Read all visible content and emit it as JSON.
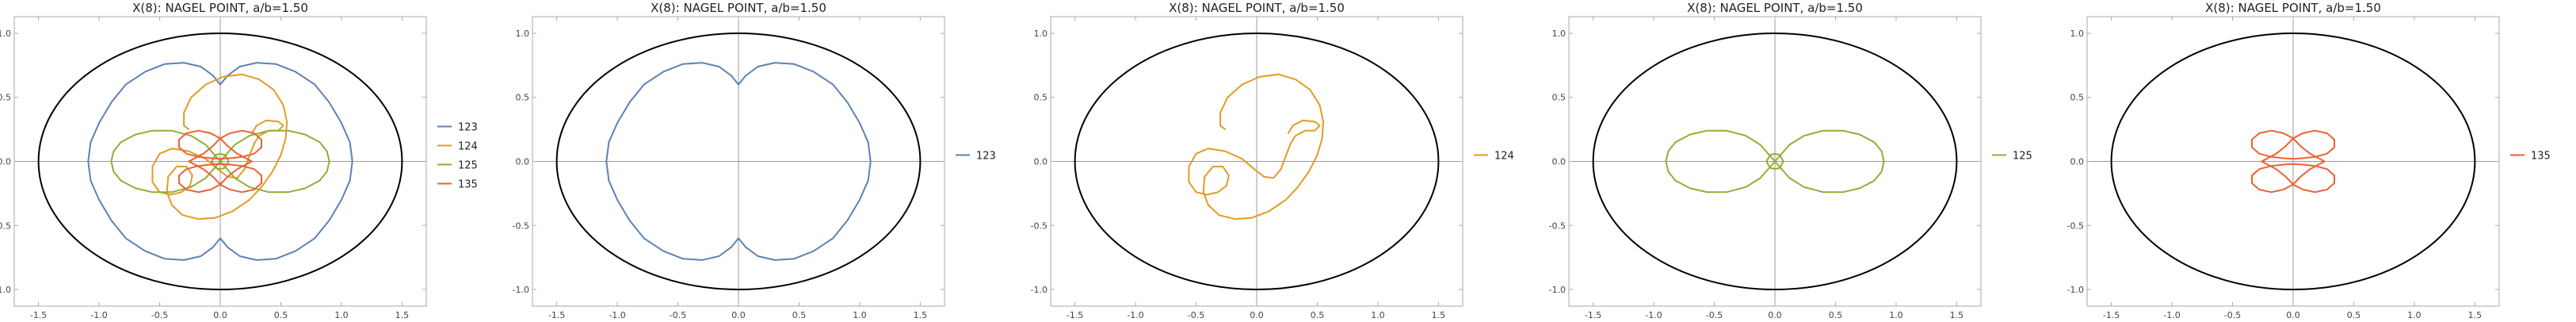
{
  "colors": {
    "123": "#5E81B5",
    "124": "#E19C24",
    "125": "#8FB032",
    "135": "#EB6235",
    "ellipse": "#000000",
    "axes": "#999999",
    "frame": "#aaaaaa",
    "tick_text": "#444444",
    "title_text": "#222222"
  },
  "chart_data": [
    {
      "type": "line",
      "title": "X(8): NAGEL POINT, a/b=1.50",
      "xlim": [
        -1.7,
        1.7
      ],
      "ylim": [
        -1.13,
        1.13
      ],
      "xticks": [
        -1.5,
        -1.0,
        -0.5,
        0.0,
        0.5,
        1.0,
        1.5
      ],
      "xtick_labels": [
        "-1.5",
        "-1.0",
        "-0.5",
        "0.0",
        "0.5",
        "1.0",
        "1.5"
      ],
      "yticks": [
        -1.0,
        -0.5,
        0.0,
        0.5,
        1.0
      ],
      "ytick_labels": [
        "-1.0",
        "-0.5",
        "0.0",
        "0.5",
        "1.0"
      ],
      "ellipse": {
        "a": 1.5,
        "b": 1.0
      },
      "legend": [
        "123",
        "124",
        "125",
        "135"
      ],
      "legend_position": "right",
      "series": [
        "123",
        "124",
        "125",
        "135"
      ]
    },
    {
      "type": "line",
      "title": "X(8): NAGEL POINT, a/b=1.50",
      "xlim": [
        -1.7,
        1.7
      ],
      "ylim": [
        -1.13,
        1.13
      ],
      "xticks": [
        -1.5,
        -1.0,
        -0.5,
        0.0,
        0.5,
        1.0,
        1.5
      ],
      "xtick_labels": [
        "-1.5",
        "-1.0",
        "-0.5",
        "0.0",
        "0.5",
        "1.0",
        "1.5"
      ],
      "yticks": [
        -1.0,
        -0.5,
        0.0,
        0.5,
        1.0
      ],
      "ytick_labels": [
        "-1.0",
        "-0.5",
        "0.0",
        "0.5",
        "1.0"
      ],
      "ellipse": {
        "a": 1.5,
        "b": 1.0
      },
      "legend": [
        "123"
      ],
      "legend_position": "right",
      "series": [
        "123"
      ]
    },
    {
      "type": "line",
      "title": "X(8): NAGEL POINT, a/b=1.50",
      "xlim": [
        -1.7,
        1.7
      ],
      "ylim": [
        -1.13,
        1.13
      ],
      "xticks": [
        -1.5,
        -1.0,
        -0.5,
        0.0,
        0.5,
        1.0,
        1.5
      ],
      "xtick_labels": [
        "-1.5",
        "-1.0",
        "-0.5",
        "0.0",
        "0.5",
        "1.0",
        "1.5"
      ],
      "yticks": [
        -1.0,
        -0.5,
        0.0,
        0.5,
        1.0
      ],
      "ytick_labels": [
        "-1.0",
        "-0.5",
        "0.0",
        "0.5",
        "1.0"
      ],
      "ellipse": {
        "a": 1.5,
        "b": 1.0
      },
      "legend": [
        "124"
      ],
      "legend_position": "right",
      "series": [
        "124"
      ]
    },
    {
      "type": "line",
      "title": "X(8): NAGEL POINT, a/b=1.50",
      "xlim": [
        -1.7,
        1.7
      ],
      "ylim": [
        -1.13,
        1.13
      ],
      "xticks": [
        -1.5,
        -1.0,
        -0.5,
        0.0,
        0.5,
        1.0,
        1.5
      ],
      "xtick_labels": [
        "-1.5",
        "-1.0",
        "-0.5",
        "0.0",
        "0.5",
        "1.0",
        "1.5"
      ],
      "yticks": [
        -1.0,
        -0.5,
        0.0,
        0.5,
        1.0
      ],
      "ytick_labels": [
        "-1.0",
        "-0.5",
        "0.0",
        "0.5",
        "1.0"
      ],
      "ellipse": {
        "a": 1.5,
        "b": 1.0
      },
      "legend": [
        "125"
      ],
      "legend_position": "right",
      "series": [
        "125"
      ]
    },
    {
      "type": "line",
      "title": "X(8): NAGEL POINT, a/b=1.50",
      "xlim": [
        -1.7,
        1.7
      ],
      "ylim": [
        -1.13,
        1.13
      ],
      "xticks": [
        -1.5,
        -1.0,
        -0.5,
        0.0,
        0.5,
        1.0,
        1.5
      ],
      "xtick_labels": [
        "-1.5",
        "-1.0",
        "-0.5",
        "0.0",
        "0.5",
        "1.0",
        "1.5"
      ],
      "yticks": [
        -1.0,
        -0.5,
        0.0,
        0.5,
        1.0
      ],
      "ytick_labels": [
        "-1.0",
        "-0.5",
        "0.0",
        "0.5",
        "1.0"
      ],
      "ellipse": {
        "a": 1.5,
        "b": 1.0
      },
      "legend": [
        "135"
      ],
      "legend_position": "right",
      "series": [
        "135"
      ]
    }
  ],
  "curves": {
    "123": [
      [
        0.0,
        0.6
      ],
      [
        0.06,
        0.67
      ],
      [
        0.16,
        0.74
      ],
      [
        0.3,
        0.77
      ],
      [
        0.46,
        0.76
      ],
      [
        0.62,
        0.7
      ],
      [
        0.78,
        0.6
      ],
      [
        0.9,
        0.46
      ],
      [
        1.0,
        0.3
      ],
      [
        1.07,
        0.15
      ],
      [
        1.09,
        0.0
      ],
      [
        1.07,
        -0.15
      ],
      [
        1.0,
        -0.3
      ],
      [
        0.9,
        -0.46
      ],
      [
        0.78,
        -0.6
      ],
      [
        0.62,
        -0.7
      ],
      [
        0.46,
        -0.76
      ],
      [
        0.3,
        -0.77
      ],
      [
        0.16,
        -0.74
      ],
      [
        0.06,
        -0.67
      ],
      [
        0.0,
        -0.6
      ],
      [
        -0.06,
        -0.67
      ],
      [
        -0.16,
        -0.74
      ],
      [
        -0.3,
        -0.77
      ],
      [
        -0.46,
        -0.76
      ],
      [
        -0.62,
        -0.7
      ],
      [
        -0.78,
        -0.6
      ],
      [
        -0.9,
        -0.46
      ],
      [
        -1.0,
        -0.3
      ],
      [
        -1.07,
        -0.15
      ],
      [
        -1.09,
        0.0
      ],
      [
        -1.07,
        0.15
      ],
      [
        -1.0,
        0.3
      ],
      [
        -0.9,
        0.46
      ],
      [
        -0.78,
        0.6
      ],
      [
        -0.62,
        0.7
      ],
      [
        -0.46,
        0.76
      ],
      [
        -0.3,
        0.77
      ],
      [
        -0.16,
        0.74
      ],
      [
        -0.06,
        0.67
      ],
      [
        0.0,
        0.6
      ]
    ],
    "124": [
      [
        -0.26,
        0.25
      ],
      [
        -0.3,
        0.28
      ],
      [
        -0.3,
        0.38
      ],
      [
        -0.24,
        0.5
      ],
      [
        -0.12,
        0.6
      ],
      [
        0.02,
        0.66
      ],
      [
        0.18,
        0.68
      ],
      [
        0.32,
        0.64
      ],
      [
        0.44,
        0.56
      ],
      [
        0.52,
        0.44
      ],
      [
        0.55,
        0.31
      ],
      [
        0.54,
        0.18
      ],
      [
        0.5,
        0.05
      ],
      [
        0.43,
        -0.08
      ],
      [
        0.34,
        -0.2
      ],
      [
        0.24,
        -0.3
      ],
      [
        0.1,
        -0.39
      ],
      [
        -0.04,
        -0.44
      ],
      [
        -0.18,
        -0.45
      ],
      [
        -0.31,
        -0.42
      ],
      [
        -0.4,
        -0.34
      ],
      [
        -0.44,
        -0.24
      ],
      [
        -0.43,
        -0.12
      ],
      [
        -0.36,
        -0.04
      ],
      [
        -0.28,
        -0.04
      ],
      [
        -0.23,
        -0.11
      ],
      [
        -0.25,
        -0.19
      ],
      [
        -0.32,
        -0.24
      ],
      [
        -0.41,
        -0.26
      ],
      [
        -0.5,
        -0.24
      ],
      [
        -0.56,
        -0.16
      ],
      [
        -0.56,
        -0.04
      ],
      [
        -0.5,
        0.06
      ],
      [
        -0.4,
        0.1
      ],
      [
        -0.26,
        0.08
      ],
      [
        -0.12,
        0.02
      ],
      [
        -0.02,
        -0.06
      ],
      [
        0.06,
        -0.12
      ],
      [
        0.14,
        -0.13
      ],
      [
        0.2,
        -0.06
      ],
      [
        0.24,
        0.04
      ],
      [
        0.28,
        0.14
      ],
      [
        0.32,
        0.2
      ],
      [
        0.4,
        0.24
      ],
      [
        0.48,
        0.24
      ],
      [
        0.52,
        0.28
      ],
      [
        0.48,
        0.31
      ],
      [
        0.38,
        0.32
      ],
      [
        0.3,
        0.28
      ],
      [
        0.26,
        0.22
      ]
    ],
    "125": [
      [
        0.0,
        0.0
      ],
      [
        0.12,
        0.13
      ],
      [
        0.24,
        0.2
      ],
      [
        0.4,
        0.24
      ],
      [
        0.56,
        0.24
      ],
      [
        0.7,
        0.21
      ],
      [
        0.82,
        0.15
      ],
      [
        0.88,
        0.08
      ],
      [
        0.9,
        0.0
      ],
      [
        0.88,
        -0.08
      ],
      [
        0.82,
        -0.15
      ],
      [
        0.7,
        -0.21
      ],
      [
        0.56,
        -0.24
      ],
      [
        0.4,
        -0.24
      ],
      [
        0.24,
        -0.2
      ],
      [
        0.12,
        -0.13
      ],
      [
        0.0,
        0.0
      ],
      [
        -0.12,
        0.13
      ],
      [
        -0.24,
        0.2
      ],
      [
        -0.4,
        0.24
      ],
      [
        -0.56,
        0.24
      ],
      [
        -0.7,
        0.21
      ],
      [
        -0.82,
        0.15
      ],
      [
        -0.88,
        0.08
      ],
      [
        -0.9,
        0.0
      ],
      [
        -0.88,
        -0.08
      ],
      [
        -0.82,
        -0.15
      ],
      [
        -0.7,
        -0.21
      ],
      [
        -0.56,
        -0.24
      ],
      [
        -0.4,
        -0.24
      ],
      [
        -0.24,
        -0.2
      ],
      [
        -0.12,
        -0.13
      ],
      [
        0.0,
        0.0
      ]
    ],
    "125b": [
      [
        0.0,
        0.06
      ],
      [
        0.04,
        0.05
      ],
      [
        0.07,
        0.0
      ],
      [
        0.04,
        -0.05
      ],
      [
        0.0,
        -0.06
      ],
      [
        -0.04,
        -0.05
      ],
      [
        -0.07,
        0.0
      ],
      [
        -0.04,
        0.05
      ],
      [
        0.0,
        0.06
      ]
    ],
    "135": [
      [
        0.0,
        0.18
      ],
      [
        0.08,
        0.22
      ],
      [
        0.18,
        0.24
      ],
      [
        0.28,
        0.22
      ],
      [
        0.34,
        0.17
      ],
      [
        0.34,
        0.11
      ],
      [
        0.28,
        0.06
      ],
      [
        0.18,
        0.035
      ],
      [
        0.08,
        0.025
      ],
      [
        0.0,
        0.02
      ],
      [
        -0.08,
        0.025
      ],
      [
        -0.18,
        0.035
      ],
      [
        -0.28,
        0.06
      ],
      [
        -0.34,
        0.11
      ],
      [
        -0.34,
        0.17
      ],
      [
        -0.28,
        0.22
      ],
      [
        -0.18,
        0.24
      ],
      [
        -0.08,
        0.22
      ],
      [
        0.0,
        0.18
      ],
      [
        0.06,
        0.12
      ],
      [
        0.14,
        0.06
      ],
      [
        0.22,
        0.02
      ],
      [
        0.26,
        0.0
      ],
      [
        0.22,
        -0.02
      ],
      [
        0.14,
        -0.06
      ],
      [
        0.06,
        -0.12
      ],
      [
        0.0,
        -0.18
      ],
      [
        -0.08,
        -0.22
      ],
      [
        -0.18,
        -0.24
      ],
      [
        -0.28,
        -0.22
      ],
      [
        -0.34,
        -0.17
      ],
      [
        -0.34,
        -0.11
      ],
      [
        -0.28,
        -0.06
      ],
      [
        -0.18,
        -0.035
      ],
      [
        -0.08,
        -0.025
      ],
      [
        0.0,
        -0.02
      ],
      [
        0.08,
        -0.025
      ],
      [
        0.18,
        -0.035
      ],
      [
        0.28,
        -0.06
      ],
      [
        0.34,
        -0.11
      ],
      [
        0.34,
        -0.17
      ],
      [
        0.28,
        -0.22
      ],
      [
        0.18,
        -0.24
      ],
      [
        0.08,
        -0.22
      ],
      [
        0.0,
        -0.18
      ],
      [
        -0.06,
        -0.12
      ],
      [
        -0.14,
        -0.06
      ],
      [
        -0.22,
        -0.02
      ],
      [
        -0.26,
        0.0
      ],
      [
        -0.22,
        0.02
      ],
      [
        -0.14,
        0.06
      ],
      [
        -0.06,
        0.12
      ],
      [
        0.0,
        0.18
      ]
    ]
  }
}
